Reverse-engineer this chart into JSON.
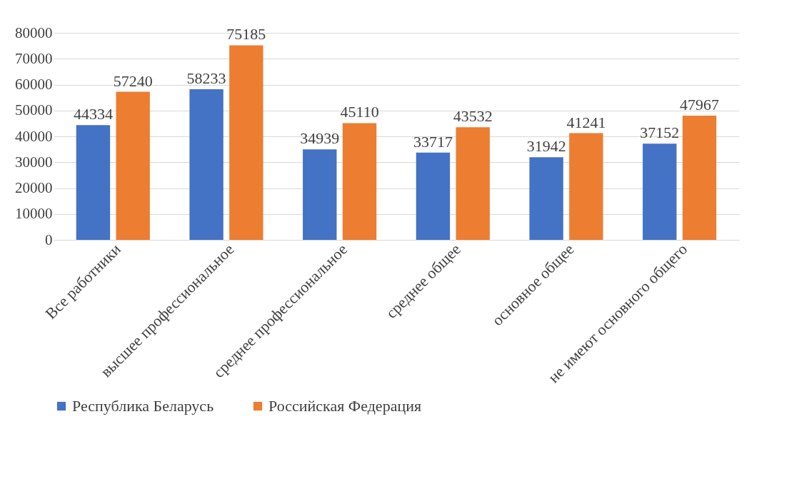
{
  "chart_data": {
    "type": "bar",
    "categories": [
      "Все работники",
      "высшее профессиональное",
      "среднее профессиональное",
      "среднее общее",
      "основное общее",
      "не имеют основного общего"
    ],
    "series": [
      {
        "name": "Республика Беларусь",
        "color": "#4472c4",
        "values": [
          44334,
          58233,
          34939,
          33717,
          31942,
          37152
        ]
      },
      {
        "name": "Российская Федерация",
        "color": "#ed7d31",
        "values": [
          57240,
          75185,
          45110,
          43532,
          41241,
          47967
        ]
      }
    ],
    "ylim": [
      0,
      80000
    ],
    "yticks": [
      0,
      10000,
      20000,
      30000,
      40000,
      50000,
      60000,
      70000,
      80000
    ],
    "grid": "y",
    "legend": "bottom",
    "data_labels": true
  }
}
